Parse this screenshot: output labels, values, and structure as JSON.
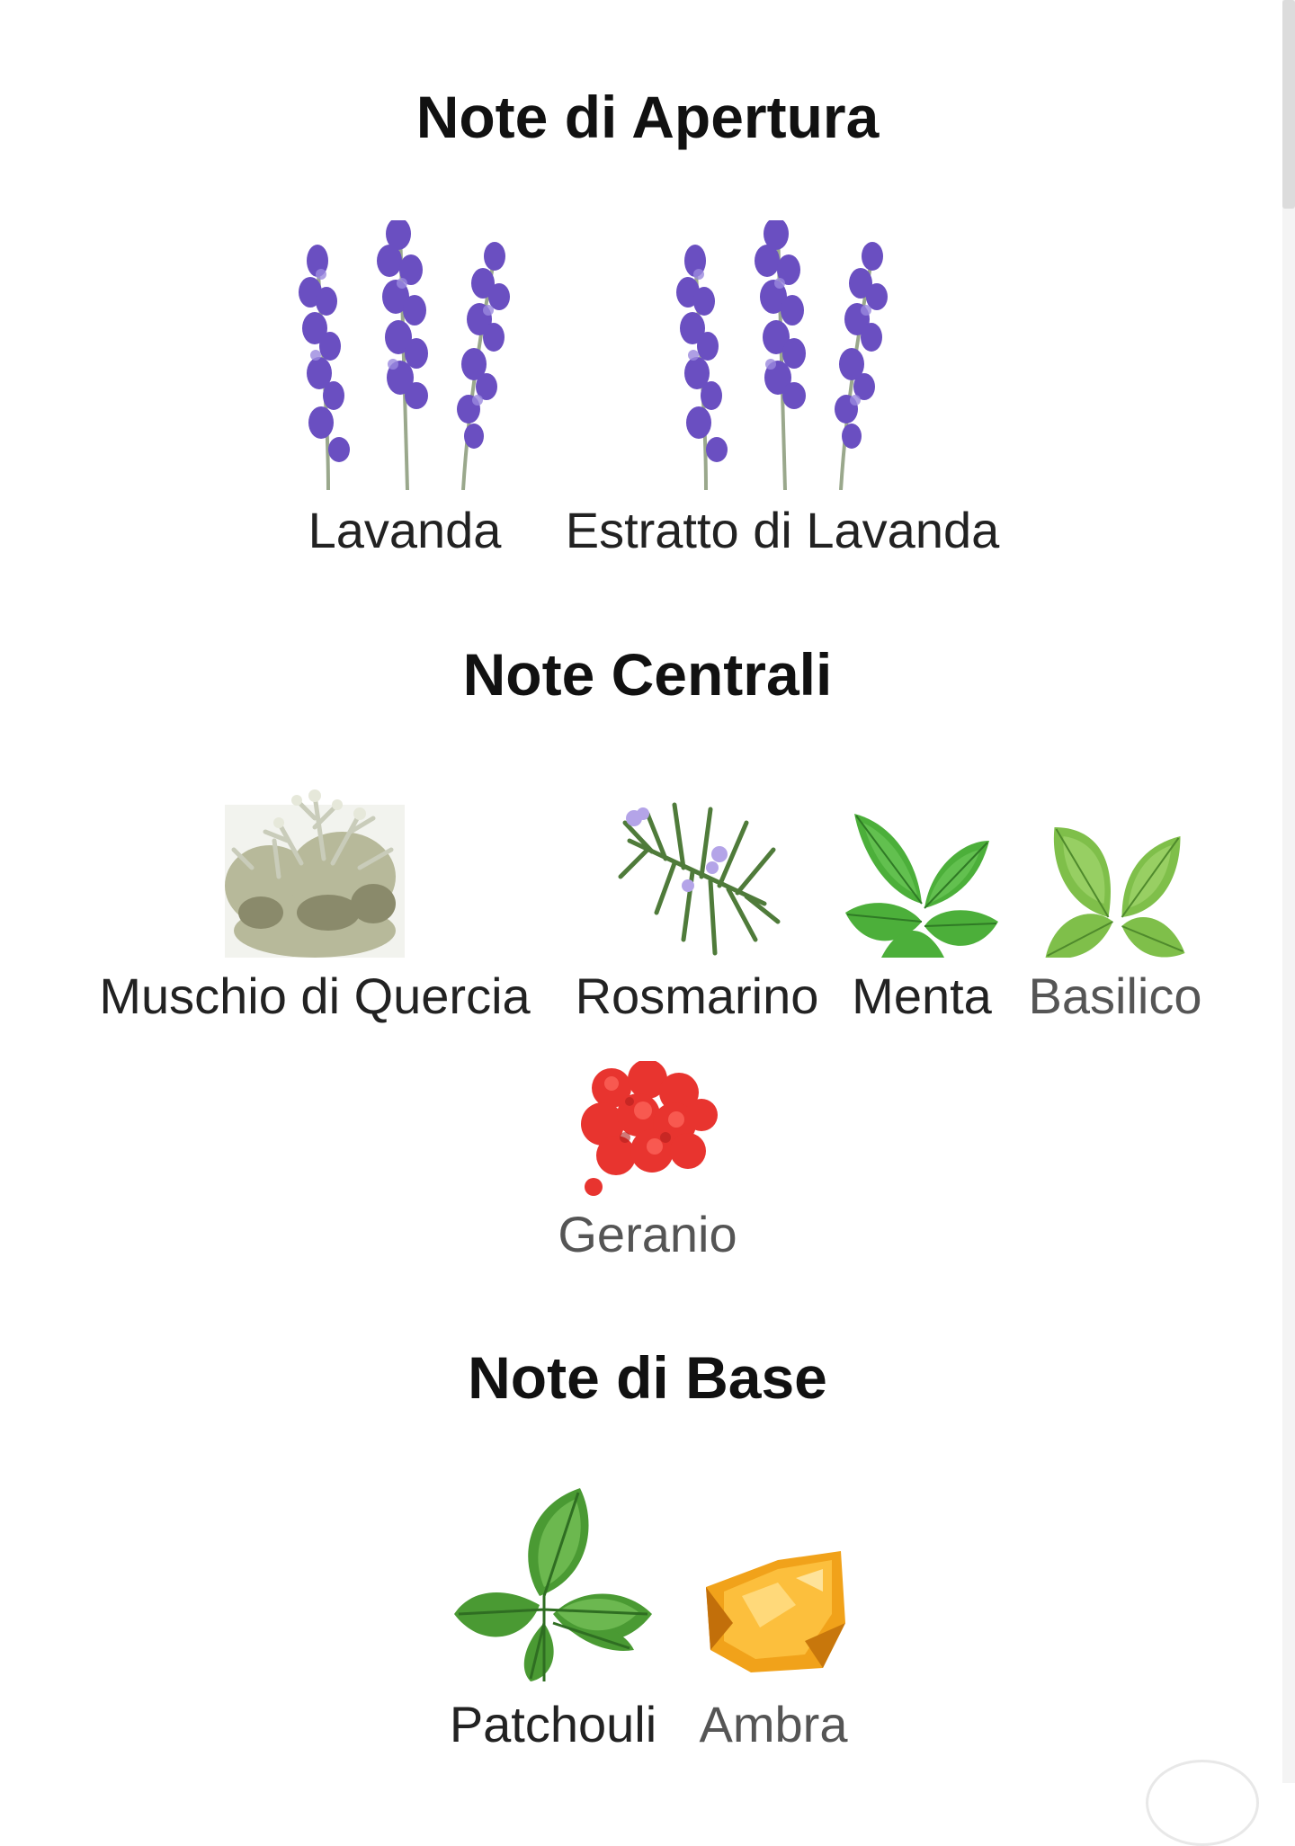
{
  "sections": {
    "opening": {
      "title": "Note di Apertura",
      "notes": [
        {
          "label": "Lavanda",
          "icon": "lavender-icon"
        },
        {
          "label": "Estratto di Lavanda",
          "icon": "lavender-icon"
        }
      ]
    },
    "heart": {
      "title": "Note Centrali",
      "notes": [
        {
          "label": "Muschio di Quercia",
          "icon": "oakmoss-icon"
        },
        {
          "label": "Rosmarino",
          "icon": "rosemary-icon"
        },
        {
          "label": "Menta",
          "icon": "mint-icon"
        },
        {
          "label": "Basilico",
          "icon": "basil-icon"
        },
        {
          "label": "Geranio",
          "icon": "geranium-icon"
        }
      ]
    },
    "base": {
      "title": "Note di Base",
      "notes": [
        {
          "label": "Patchouli",
          "icon": "patchouli-icon"
        },
        {
          "label": "Ambra",
          "icon": "amber-icon"
        }
      ]
    }
  },
  "colors": {
    "background": "#ffffff",
    "title_text": "#111111",
    "label_text": "#222222",
    "lavender": "#6a4fc1",
    "leaf_green": "#4caf3a",
    "geranium_red": "#e8342f",
    "amber": "#f1a21a"
  }
}
